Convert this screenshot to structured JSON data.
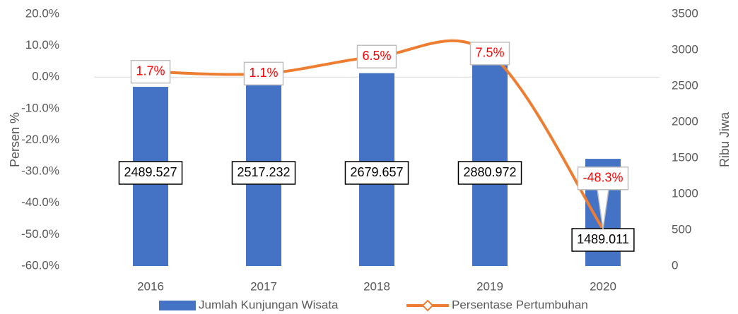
{
  "chart_data": {
    "type": "bar_line",
    "categories": [
      "2016",
      "2017",
      "2018",
      "2019",
      "2020"
    ],
    "ylabel": "Persen %",
    "y2label": "Ribu Jiwa",
    "ylim": [
      -60,
      20
    ],
    "yticks": [
      {
        "value": 20,
        "label": "20.0%"
      },
      {
        "value": 10,
        "label": "10.0%"
      },
      {
        "value": 0,
        "label": "0.0%"
      },
      {
        "value": -10,
        "label": "-10.0%"
      },
      {
        "value": -20,
        "label": "-20.0%"
      },
      {
        "value": -30,
        "label": "-30.0%"
      },
      {
        "value": -40,
        "label": "-40.0%"
      },
      {
        "value": -50,
        "label": "-50.0%"
      },
      {
        "value": -60,
        "label": "-60.0%"
      }
    ],
    "y2lim": [
      0,
      3500
    ],
    "y2ticks": [
      0,
      500,
      1000,
      1500,
      2000,
      2500,
      3000,
      3500
    ],
    "legend": "bottom",
    "series": [
      {
        "name": "Jumlah Kunjungan Wisata",
        "type": "bar",
        "axis": "y2",
        "color": "#4472c4",
        "values": [
          2489.527,
          2517.232,
          2679.657,
          2880.972,
          1489.011
        ]
      },
      {
        "name": "Persentase Pertumbuhan",
        "type": "line",
        "axis": "y",
        "color": "#ed7d31",
        "values": [
          1.7,
          1.1,
          6.5,
          7.5,
          -48.3
        ],
        "value_labels": [
          "1.7%",
          "1.1%",
          "6.5%",
          "7.5%",
          "-48.3%"
        ]
      }
    ]
  }
}
